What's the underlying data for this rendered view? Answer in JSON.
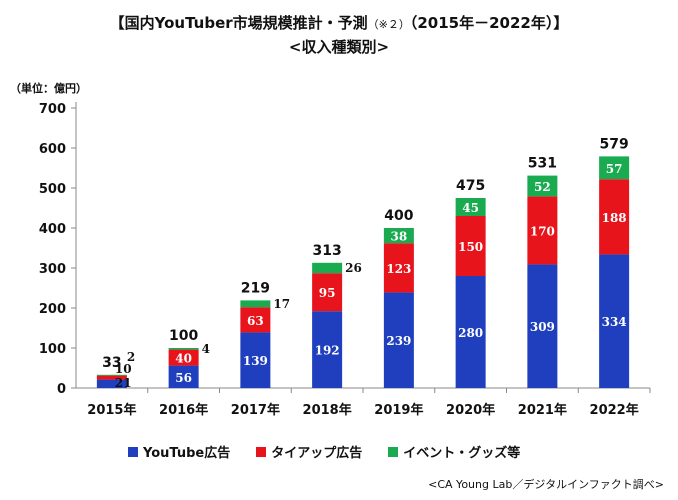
{
  "header": {
    "title_main": "【国内YouTuber市場規模推計・予測",
    "title_note": "（※２）",
    "title_range": "（2015年－2022年）】",
    "subtitle": "<収入種類別>"
  },
  "unit_label": "（単位：億円）",
  "source": "<CA Young Lab／デジタルインファクト調べ>",
  "colors": {
    "youtube": "#1f3fbf",
    "tieup": "#e8141c",
    "goods": "#1aab50"
  },
  "chart_data": {
    "type": "bar",
    "stacked": true,
    "categories": [
      "2015年",
      "2016年",
      "2017年",
      "2018年",
      "2019年",
      "2020年",
      "2021年",
      "2022年"
    ],
    "series": [
      {
        "name": "YouTube広告",
        "values": [
          21,
          56,
          139,
          192,
          239,
          280,
          309,
          334
        ]
      },
      {
        "name": "タイアップ広告",
        "values": [
          10,
          40,
          63,
          95,
          123,
          150,
          170,
          188
        ]
      },
      {
        "name": "イベント・グッズ等",
        "values": [
          2,
          4,
          17,
          26,
          38,
          45,
          52,
          57
        ]
      }
    ],
    "totals": [
      33,
      100,
      219,
      313,
      400,
      475,
      531,
      579
    ],
    "yticks": [
      0,
      100,
      200,
      300,
      400,
      500,
      600,
      700
    ],
    "ylim": [
      0,
      700
    ],
    "legend_position": "bottom"
  }
}
